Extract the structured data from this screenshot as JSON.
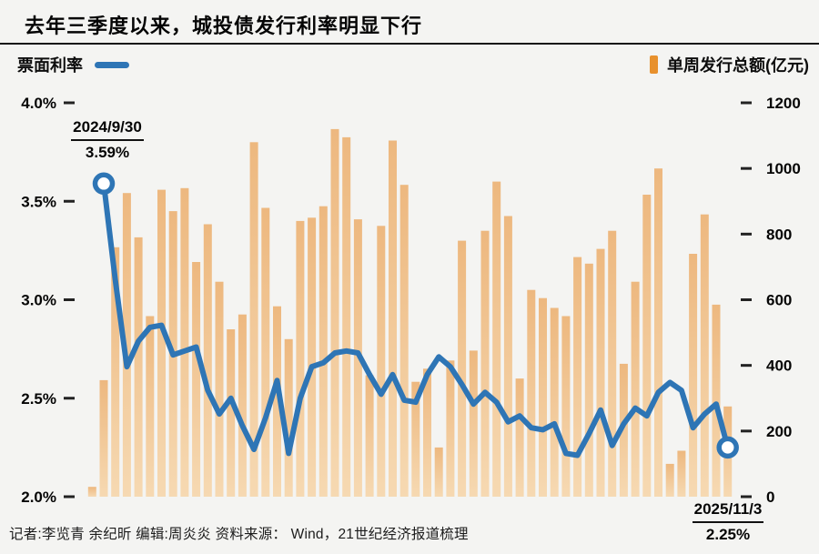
{
  "title": "去年三季度以来，城投债发行利率明显下行",
  "legend": {
    "line_label": "票面利率",
    "bar_label": "单周发行总额(亿元)"
  },
  "annotations": {
    "start": {
      "date": "2024/9/30",
      "value": "3.59%"
    },
    "end": {
      "date": "2025/11/3",
      "value": "2.25%"
    }
  },
  "footer": "记者:李览青 余纪昕  编辑:周炎炎  资料来源： Wind，21世纪经济报道梳理",
  "colors": {
    "background": "#f4f4f2",
    "line": "#2e75b5",
    "marker_fill": "#ffffff",
    "bar_top": "#edb87f",
    "bar_bottom": "#f6d9b2",
    "legend_bar": "#e8912d",
    "axis_text": "#050505",
    "tick": "#222222"
  },
  "chart_data": {
    "type": "combo-bar-line-dual-axis",
    "x": {
      "unit": "week",
      "start_label": "2024/9/30",
      "end_label": "2025/11/3",
      "n_points": 56
    },
    "left_axis": {
      "title": "票面利率",
      "unit": "%",
      "min": 2.0,
      "max": 4.0,
      "tick_labels": [
        "4.0%",
        "3.5%",
        "3.0%",
        "2.5%",
        "2.0%"
      ]
    },
    "right_axis": {
      "title": "单周发行总额(亿元)",
      "unit": "亿元",
      "min": 0,
      "max": 1200,
      "tick_labels": [
        "1200",
        "1000",
        "800",
        "600",
        "400",
        "200",
        "0"
      ]
    },
    "grid": false,
    "legend_position": "top",
    "series": [
      {
        "name": "票面利率",
        "type": "line",
        "axis": "left",
        "unit": "%",
        "values": [
          null,
          3.59,
          3.1,
          2.66,
          2.79,
          2.86,
          2.87,
          2.72,
          2.74,
          2.76,
          2.54,
          2.42,
          2.5,
          2.36,
          2.24,
          2.4,
          2.59,
          2.22,
          2.5,
          2.66,
          2.68,
          2.73,
          2.74,
          2.73,
          2.62,
          2.52,
          2.62,
          2.49,
          2.48,
          2.62,
          2.71,
          2.66,
          2.57,
          2.47,
          2.53,
          2.48,
          2.38,
          2.41,
          2.35,
          2.34,
          2.37,
          2.22,
          2.21,
          2.32,
          2.44,
          2.26,
          2.37,
          2.45,
          2.41,
          2.53,
          2.58,
          2.54,
          2.35,
          2.42,
          2.47,
          2.25
        ]
      },
      {
        "name": "单周发行总额(亿元)",
        "type": "bar",
        "axis": "right",
        "unit": "亿元",
        "values": [
          30,
          355,
          760,
          925,
          790,
          550,
          935,
          870,
          940,
          715,
          830,
          655,
          510,
          555,
          1080,
          880,
          580,
          480,
          840,
          850,
          885,
          1120,
          1095,
          845,
          370,
          825,
          1085,
          950,
          350,
          390,
          150,
          415,
          780,
          445,
          810,
          960,
          855,
          360,
          630,
          605,
          575,
          550,
          730,
          710,
          755,
          810,
          405,
          655,
          920,
          1000,
          100,
          140,
          740,
          860,
          585,
          275
        ]
      }
    ]
  }
}
